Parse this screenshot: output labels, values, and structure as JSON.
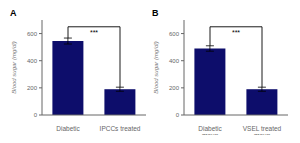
{
  "chart_data": [
    {
      "type": "bar",
      "title": "A",
      "categories": [
        "Diabetic",
        "IPCCs treated"
      ],
      "values": [
        545,
        190
      ],
      "errors": [
        22,
        15
      ],
      "color": "#0d0d6b",
      "ylabel": "Blood sugar (mg/dl)",
      "ylim": [
        0,
        700
      ],
      "yticks": [
        0,
        200,
        400,
        600
      ],
      "annotations": [
        {
          "text": "***",
          "y": 650
        }
      ]
    },
    {
      "type": "bar",
      "title": "B",
      "categories": [
        "Diabetic\ngroup",
        "VSEL treated\ngroup"
      ],
      "values": [
        490,
        190
      ],
      "errors": [
        20,
        15
      ],
      "color": "#0d0d6b",
      "ylabel": "Blood sugar (mg/dl)",
      "ylim": [
        0,
        700
      ],
      "yticks": [
        0,
        200,
        400,
        600
      ],
      "annotations": [
        {
          "text": "***",
          "y": 650
        }
      ]
    }
  ]
}
